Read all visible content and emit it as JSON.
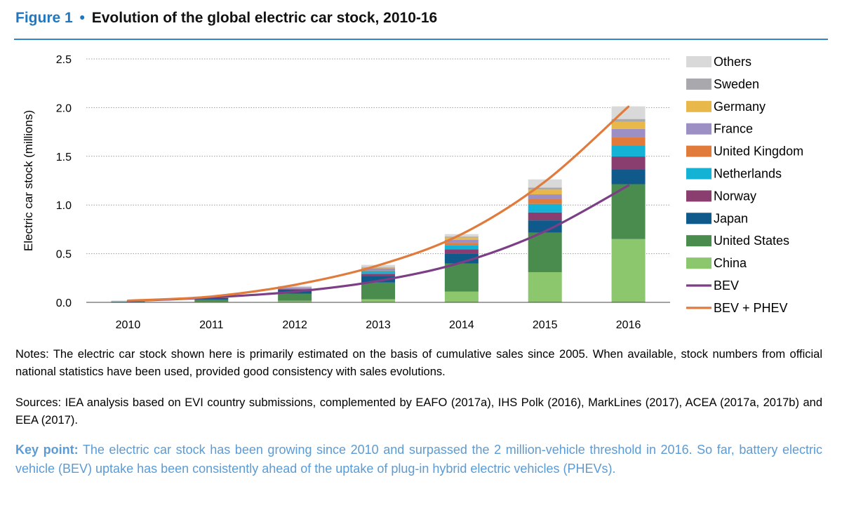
{
  "figure": {
    "label": "Figure 1",
    "bullet": "•",
    "title": "Evolution of the global electric car stock, 2010-16"
  },
  "chart_data": {
    "type": "bar",
    "stacked": true,
    "categories": [
      "2010",
      "2011",
      "2012",
      "2013",
      "2014",
      "2015",
      "2016"
    ],
    "ylabel": "Electric car stock (millions)",
    "ylim": [
      0,
      2.5
    ],
    "yticks": [
      "0.0",
      "0.5",
      "1.0",
      "1.5",
      "2.0",
      "2.5"
    ],
    "grid": "dotted horizontal",
    "legend_position": "right",
    "series": [
      {
        "name": "China",
        "color": "#8cc66d",
        "values": [
          0.002,
          0.007,
          0.016,
          0.032,
          0.11,
          0.31,
          0.65
        ]
      },
      {
        "name": "United States",
        "color": "#4a8c4e",
        "values": [
          0.004,
          0.021,
          0.074,
          0.171,
          0.29,
          0.405,
          0.564
        ]
      },
      {
        "name": "Japan",
        "color": "#0f5a8a",
        "values": [
          0.003,
          0.016,
          0.04,
          0.07,
          0.1,
          0.127,
          0.151
        ]
      },
      {
        "name": "Norway",
        "color": "#8a3d6f",
        "values": [
          0.0,
          0.002,
          0.006,
          0.02,
          0.045,
          0.082,
          0.133
        ]
      },
      {
        "name": "Netherlands",
        "color": "#14b3d6",
        "values": [
          0.0,
          0.001,
          0.006,
          0.028,
          0.044,
          0.087,
          0.112
        ]
      },
      {
        "name": "United Kingdom",
        "color": "#e07b3c",
        "values": [
          0.0,
          0.001,
          0.003,
          0.008,
          0.022,
          0.048,
          0.086
        ]
      },
      {
        "name": "France",
        "color": "#9b8fc4",
        "values": [
          0.0,
          0.003,
          0.008,
          0.02,
          0.03,
          0.05,
          0.084
        ]
      },
      {
        "name": "Germany",
        "color": "#e8b84a",
        "values": [
          0.0,
          0.002,
          0.005,
          0.012,
          0.025,
          0.049,
          0.073
        ]
      },
      {
        "name": "Sweden",
        "color": "#a9a9ad",
        "values": [
          0.0,
          0.0,
          0.001,
          0.004,
          0.01,
          0.02,
          0.03
        ]
      },
      {
        "name": "Others",
        "color": "#d9d9d9",
        "values": [
          0.011,
          0.007,
          0.01,
          0.02,
          0.025,
          0.085,
          0.13
        ]
      }
    ],
    "lines": [
      {
        "name": "BEV",
        "color": "#7c3f86",
        "values": [
          0.014,
          0.05,
          0.11,
          0.22,
          0.41,
          0.73,
          1.2
        ]
      },
      {
        "name": "BEV + PHEV",
        "color": "#e07b3c",
        "values": [
          0.017,
          0.06,
          0.18,
          0.38,
          0.7,
          1.24,
          2.01
        ]
      }
    ]
  },
  "notes": "Notes: The electric car stock shown here is primarily estimated on the basis of cumulative sales since 2005. When available, stock numbers from official national statistics have been used, provided good consistency with sales evolutions.",
  "sources": "Sources: IEA analysis based on EVI country submissions, complemented by EAFO (2017a), IHS Polk (2016), MarkLines (2017), ACEA (2017a, 2017b)  and EEA (2017).",
  "key_point": {
    "label": "Key point:",
    "text": " The electric car stock has been growing since 2010 and surpassed the 2 million-vehicle threshold in 2016. So far, battery electric vehicle (BEV) uptake has been consistently ahead of the uptake of plug-in hybrid electric vehicles (PHEVs)."
  }
}
